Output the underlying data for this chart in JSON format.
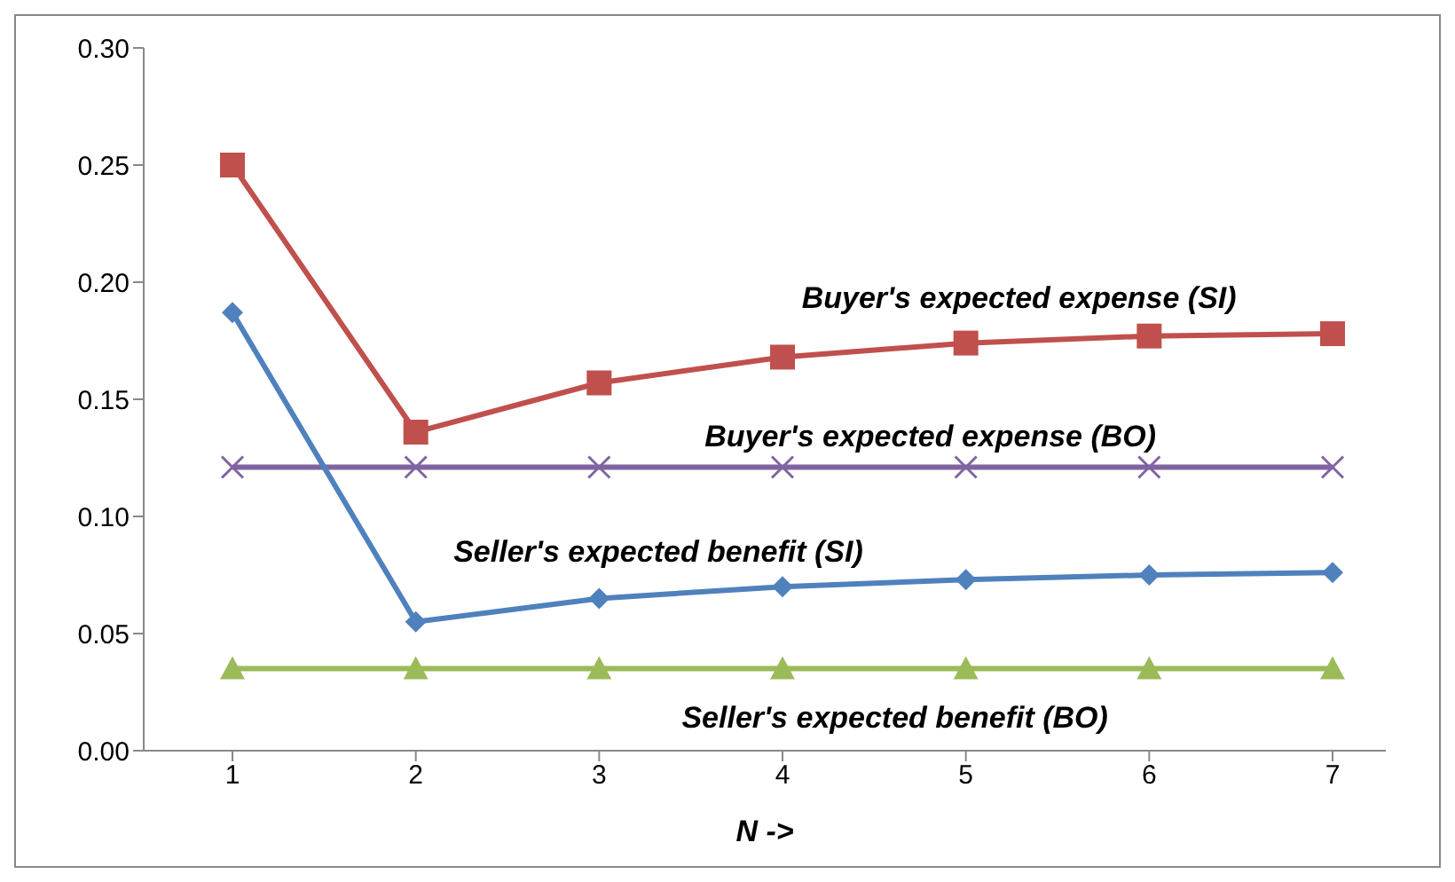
{
  "chart_data": {
    "type": "line",
    "xlabel": "N ->",
    "categories": [
      "1",
      "2",
      "3",
      "4",
      "5",
      "6",
      "7"
    ],
    "ylim": [
      0,
      0.3
    ],
    "yticks": [
      {
        "value": 0,
        "label": "0.00"
      },
      {
        "value": 0.05,
        "label": "0.05"
      },
      {
        "value": 0.1,
        "label": "0.10"
      },
      {
        "value": 0.15,
        "label": "0.15"
      },
      {
        "value": 0.2,
        "label": "0.20"
      },
      {
        "value": 0.25,
        "label": "0.25"
      },
      {
        "value": 0.3,
        "label": "0.30"
      }
    ],
    "grid": false,
    "legend": false,
    "line_style": "solid",
    "series": [
      {
        "name": "Buyer's expected expense (SI)",
        "color": "#c0504d",
        "marker": "square",
        "values": [
          0.25,
          0.136,
          0.157,
          0.168,
          0.174,
          0.177,
          0.178
        ]
      },
      {
        "name": "Buyer's expected expense (BO)",
        "color": "#8064a2",
        "marker": "cross",
        "values": [
          0.121,
          0.121,
          0.121,
          0.121,
          0.121,
          0.121,
          0.121
        ]
      },
      {
        "name": "Seller's expected benefit (SI)",
        "color": "#4f81bd",
        "marker": "diamond",
        "values": [
          0.187,
          0.055,
          0.065,
          0.07,
          0.073,
          0.075,
          0.076
        ]
      },
      {
        "name": "Seller's expected benefit (BO)",
        "color": "#9bbb59",
        "marker": "triangle",
        "values": [
          0.035,
          0.035,
          0.035,
          0.035,
          0.035,
          0.035,
          0.035
        ]
      }
    ]
  }
}
